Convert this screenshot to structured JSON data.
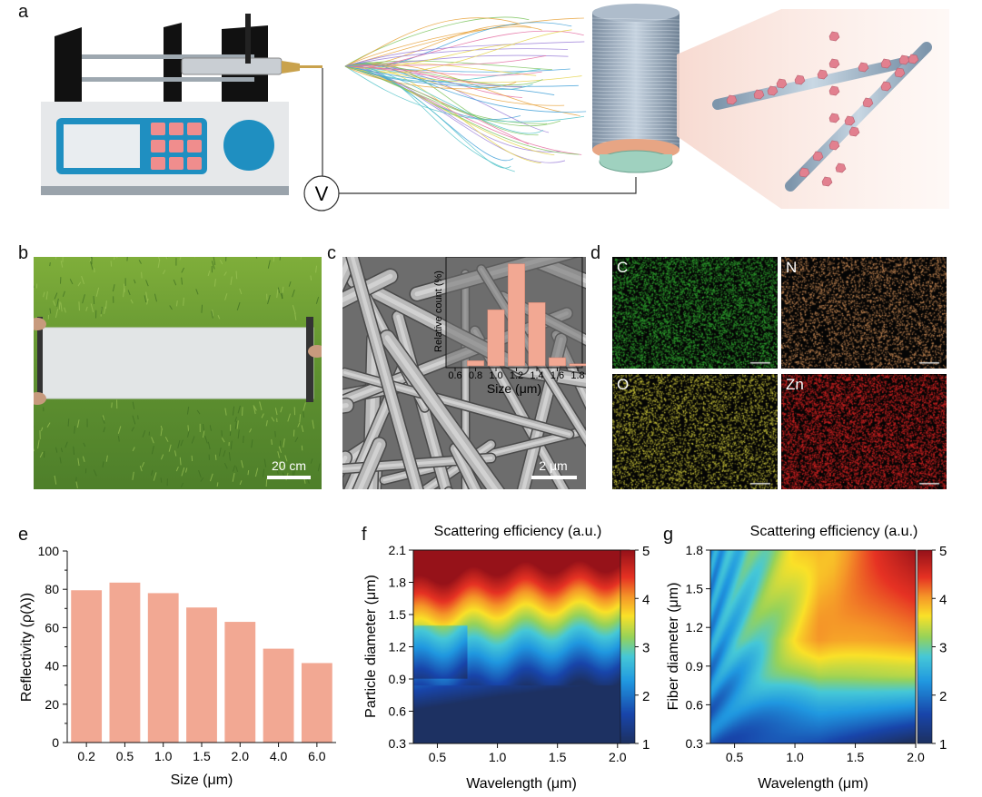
{
  "panel_labels": {
    "a": "a",
    "b": "b",
    "c": "c",
    "d": "d",
    "e": "e",
    "f": "f",
    "g": "g"
  },
  "panel_a": {
    "voltage_symbol": "V"
  },
  "panel_b": {
    "scale_bar": "20 cm"
  },
  "panel_c": {
    "scale_bar": "2 μm"
  },
  "panel_d": {
    "tiles": [
      {
        "element": "C",
        "color": "#2fa52f"
      },
      {
        "element": "N",
        "color": "#c98a55"
      },
      {
        "element": "O",
        "color": "#c9c43a"
      },
      {
        "element": "Zn",
        "color": "#d52222"
      }
    ]
  },
  "chart_data": [
    {
      "id": "c-inset",
      "type": "bar",
      "xlabel": "Size (μm)",
      "ylabel": "Relative count (%)",
      "x_ticks": [
        "0.6",
        "0.8",
        "1.0",
        "1.2",
        "1.4",
        "1.6",
        "1.8"
      ],
      "bins": [
        0.8,
        1.0,
        1.2,
        1.4,
        1.6,
        1.8
      ],
      "values": [
        5,
        55,
        100,
        62,
        8,
        2
      ],
      "xlim": [
        0.6,
        1.8
      ],
      "ylim": [
        0,
        105
      ]
    },
    {
      "id": "e",
      "type": "bar",
      "xlabel": "Size (μm)",
      "ylabel": "Reflectivity (ρ(λ))",
      "categories": [
        "0.2",
        "0.5",
        "1.0",
        "1.5",
        "2.0",
        "4.0",
        "6.0"
      ],
      "values": [
        79.5,
        83.5,
        78,
        70.5,
        63,
        49,
        41.5
      ],
      "ylim": [
        0,
        100
      ],
      "y_ticks": [
        "0",
        "20",
        "40",
        "60",
        "80",
        "100"
      ],
      "color": "#f2a893"
    },
    {
      "id": "f",
      "type": "heatmap",
      "title": "Scattering efficiency (a.u.)",
      "xlabel": "Wavelength (μm)",
      "ylabel": "Particle diameter (μm)",
      "x_ticks": [
        "0.5",
        "1.0",
        "1.5",
        "2.0"
      ],
      "y_ticks": [
        "0.3",
        "0.6",
        "0.9",
        "1.2",
        "1.5",
        "1.8",
        "2.1"
      ],
      "xlim": [
        0.3,
        2.1
      ],
      "ylim": [
        0.3,
        2.1
      ],
      "colorbar_ticks": [
        "1",
        "2",
        "3",
        "4",
        "5"
      ],
      "colorbar_range": [
        1,
        5
      ]
    },
    {
      "id": "g",
      "type": "heatmap",
      "title": "Scattering efficiency (a.u.)",
      "xlabel": "Wavelength (μm)",
      "ylabel": "Fiber diameter (μm)",
      "x_ticks": [
        "0.5",
        "1.0",
        "1.5",
        "2.0"
      ],
      "y_ticks": [
        "0.3",
        "0.6",
        "0.9",
        "1.2",
        "1.5",
        "1.8"
      ],
      "xlim": [
        0.3,
        2.0
      ],
      "ylim": [
        0.3,
        1.8
      ],
      "colorbar_ticks": [
        "1",
        "2",
        "3",
        "4",
        "5"
      ],
      "colorbar_range": [
        1,
        5
      ]
    }
  ]
}
